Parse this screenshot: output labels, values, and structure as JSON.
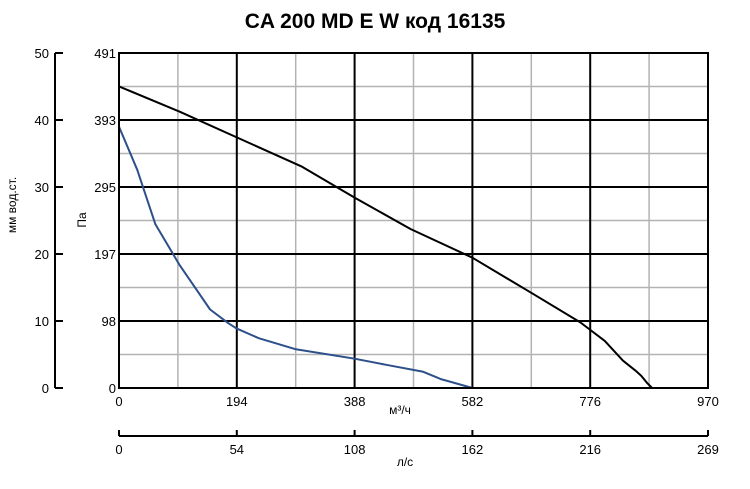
{
  "chart_data": {
    "type": "line",
    "title": "CA 200 MD E W код 16135",
    "xlabel": "м³/ч",
    "ylabel": "Па",
    "xlim": [
      0,
      970
    ],
    "ylim": [
      0,
      491
    ],
    "grid": true,
    "x_ticks": [
      "0",
      "194",
      "388",
      "582",
      "776",
      "970"
    ],
    "y_ticks": [
      "0",
      "98",
      "197",
      "295",
      "393",
      "491"
    ],
    "secondary_y_axis": {
      "label": "мм вод.ст.",
      "range": [
        0,
        50
      ],
      "ticks": [
        "0",
        "10",
        "20",
        "30",
        "40",
        "50"
      ]
    },
    "secondary_x_axis": {
      "label": "л/с",
      "range": [
        0,
        269
      ],
      "ticks": [
        "0",
        "54",
        "108",
        "162",
        "216",
        "269"
      ]
    },
    "series": [
      {
        "color": "#000000",
        "x": [
          0,
          100,
          200,
          300,
          388,
          480,
          582,
          680,
          760,
          800,
          830,
          850,
          860,
          870,
          878
        ],
        "y": [
          442,
          405,
          365,
          325,
          279,
          233,
          191,
          139,
          96,
          69,
          40,
          26,
          18,
          7,
          0
        ]
      },
      {
        "color": "#2d4f8a",
        "x": [
          0,
          30,
          60,
          100,
          150,
          180,
          194,
          230,
          290,
          388,
          440,
          500,
          530,
          550,
          582
        ],
        "y": [
          383,
          320,
          240,
          180,
          115,
          95,
          87,
          73,
          57,
          43,
          34,
          24,
          13,
          8,
          0
        ]
      }
    ]
  }
}
